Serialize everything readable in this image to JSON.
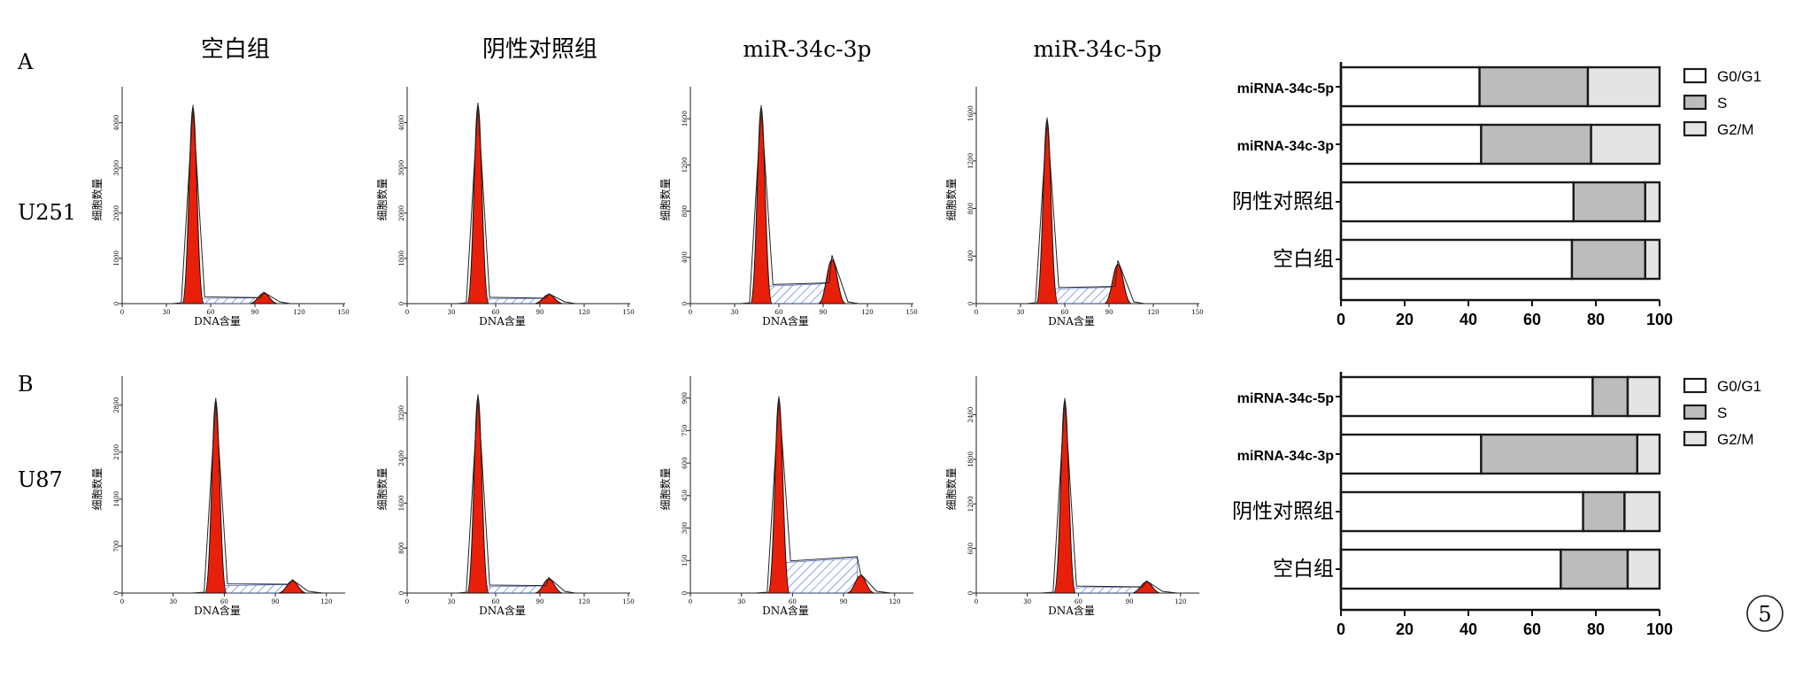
{
  "columns": [
    "空白组",
    "阴性对照组",
    "miR-34c-3p",
    "miR-34c-5p"
  ],
  "panels": [
    {
      "letter": "A",
      "cell_line": "U251"
    },
    {
      "letter": "B",
      "cell_line": "U87"
    }
  ],
  "hist_common": {
    "ylabel": "细胞数量",
    "xlabel": "DNA含量"
  },
  "figure_number": "5",
  "colors": {
    "g1": "#e8200a",
    "s_hatch": "#3a5bc8",
    "bar_g0g1": "#ffffff",
    "bar_s": "#bcbcbc",
    "bar_g2m": "#e4e4e4",
    "outline": "#1a1a1a"
  },
  "histograms": [
    {
      "row": 0,
      "col": 0,
      "xticks": [
        "0",
        "30",
        "60",
        "90",
        "120",
        "150"
      ],
      "yticks": [
        "0",
        "1000",
        "2000",
        "3000",
        "4000"
      ],
      "ymax": 4600,
      "g1_pos": 48,
      "g1_height": 4350,
      "g2_pos": 96,
      "g2_height": 230,
      "s_level": 110
    },
    {
      "row": 0,
      "col": 1,
      "xticks": [
        "0",
        "30",
        "60",
        "90",
        "120",
        "150"
      ],
      "yticks": [
        "0",
        "1000",
        "2000",
        "3000",
        "4000"
      ],
      "ymax": 4600,
      "g1_pos": 48,
      "g1_height": 4400,
      "g2_pos": 96,
      "g2_height": 200,
      "s_level": 100
    },
    {
      "row": 0,
      "col": 2,
      "xticks": [
        "0",
        "30",
        "60",
        "90",
        "120",
        "150"
      ],
      "yticks": [
        "0",
        "400",
        "800",
        "1200",
        "1600"
      ],
      "ymax": 1800,
      "g1_pos": 48,
      "g1_height": 1700,
      "g2_pos": 96,
      "g2_height": 380,
      "s_level": 150
    },
    {
      "row": 0,
      "col": 3,
      "xticks": [
        "0",
        "30",
        "60",
        "90",
        "120",
        "150"
      ],
      "yticks": [
        "0",
        "400",
        "800",
        "1200",
        "1600"
      ],
      "ymax": 1750,
      "g1_pos": 48,
      "g1_height": 1550,
      "g2_pos": 96,
      "g2_height": 330,
      "s_level": 120
    },
    {
      "row": 1,
      "col": 0,
      "xticks": [
        "0",
        "30",
        "60",
        "90",
        "120"
      ],
      "yticks": [
        "0",
        "700",
        "1400",
        "2100",
        "2800"
      ],
      "ymax": 3100,
      "g1_pos": 55,
      "g1_height": 2880,
      "g2_pos": 100,
      "g2_height": 180,
      "s_level": 110
    },
    {
      "row": 1,
      "col": 1,
      "xticks": [
        "0",
        "30",
        "60",
        "90",
        "120",
        "150"
      ],
      "yticks": [
        "0",
        "800",
        "1600",
        "2400",
        "3200"
      ],
      "ymax": 3700,
      "g1_pos": 48,
      "g1_height": 3500,
      "g2_pos": 96,
      "g2_height": 250,
      "s_level": 110
    },
    {
      "row": 1,
      "col": 2,
      "xticks": [
        "0",
        "30",
        "60",
        "90",
        "120"
      ],
      "yticks": [
        "0",
        "150",
        "300",
        "450",
        "600",
        "750",
        "900"
      ],
      "ymax": 960,
      "g1_pos": 52,
      "g1_height": 900,
      "g2_pos": 100,
      "g2_height": 80,
      "s_level": 140
    },
    {
      "row": 1,
      "col": 3,
      "xticks": [
        "0",
        "30",
        "60",
        "90",
        "120"
      ],
      "yticks": [
        "0",
        "600",
        "1200",
        "1800",
        "2400"
      ],
      "ymax": 2800,
      "g1_pos": 52,
      "g1_height": 2600,
      "g2_pos": 100,
      "g2_height": 150,
      "s_level": 70
    }
  ],
  "chart_data": [
    {
      "type": "bar",
      "orientation": "horizontal",
      "stacked": true,
      "panel": "A",
      "categories": [
        "miRNA-34c-5p",
        "miRNA-34c-3p",
        "阴性对照组",
        "空白组"
      ],
      "series": [
        {
          "name": "G0/G1",
          "values": [
            43.5,
            44,
            73,
            72.5
          ]
        },
        {
          "name": "S",
          "values": [
            34,
            34.5,
            22.5,
            23
          ]
        },
        {
          "name": "G2/M",
          "values": [
            22.5,
            21.5,
            4.5,
            4.5
          ]
        }
      ],
      "xticks": [
        "0",
        "20",
        "40",
        "60",
        "80",
        "100"
      ],
      "xlim": [
        0,
        100
      ],
      "legend": "top-right"
    },
    {
      "type": "bar",
      "orientation": "horizontal",
      "stacked": true,
      "panel": "B",
      "categories": [
        "miRNA-34c-5p",
        "miRNA-34c-3p",
        "阴性对照组",
        "空白组"
      ],
      "series": [
        {
          "name": "G0/G1",
          "values": [
            79,
            44,
            76,
            69
          ]
        },
        {
          "name": "S",
          "values": [
            11,
            49,
            13,
            21
          ]
        },
        {
          "name": "G2/M",
          "values": [
            10,
            7,
            11,
            10
          ]
        }
      ],
      "xticks": [
        "0",
        "20",
        "40",
        "60",
        "80",
        "100"
      ],
      "xlim": [
        0,
        100
      ],
      "legend": "top-right"
    }
  ]
}
